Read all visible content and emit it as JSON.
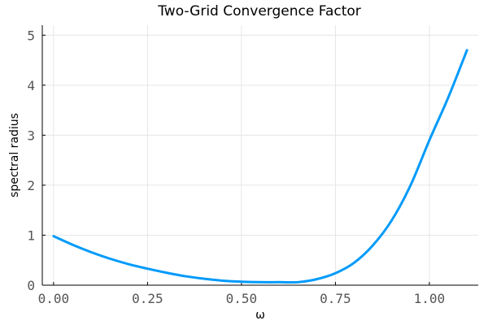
{
  "chart_data": {
    "type": "line",
    "title": "Two-Grid Convergence Factor",
    "xlabel": "ω",
    "ylabel": "spectral radius",
    "xlim": [
      -0.03,
      1.13
    ],
    "ylim": [
      0,
      5.2
    ],
    "xticks": [
      0.0,
      0.25,
      0.5,
      0.75,
      1.0
    ],
    "xtick_labels": [
      "0.00",
      "0.25",
      "0.50",
      "0.75",
      "1.00"
    ],
    "yticks": [
      0,
      1,
      2,
      3,
      4,
      5
    ],
    "ytick_labels": [
      "0",
      "1",
      "2",
      "3",
      "4",
      "5"
    ],
    "grid": true,
    "legend": "none",
    "series": [
      {
        "color": "#009AFA",
        "x": [
          0.0,
          0.05,
          0.1,
          0.15,
          0.2,
          0.25,
          0.3,
          0.35,
          0.4,
          0.45,
          0.5,
          0.55,
          0.6,
          0.65,
          0.7,
          0.75,
          0.8,
          0.85,
          0.9,
          0.95,
          1.0,
          1.05,
          1.1
        ],
        "y": [
          0.98,
          0.81,
          0.66,
          0.53,
          0.42,
          0.33,
          0.25,
          0.18,
          0.13,
          0.09,
          0.07,
          0.06,
          0.06,
          0.06,
          0.12,
          0.24,
          0.45,
          0.8,
          1.3,
          2.0,
          2.9,
          3.75,
          4.7
        ]
      }
    ]
  }
}
